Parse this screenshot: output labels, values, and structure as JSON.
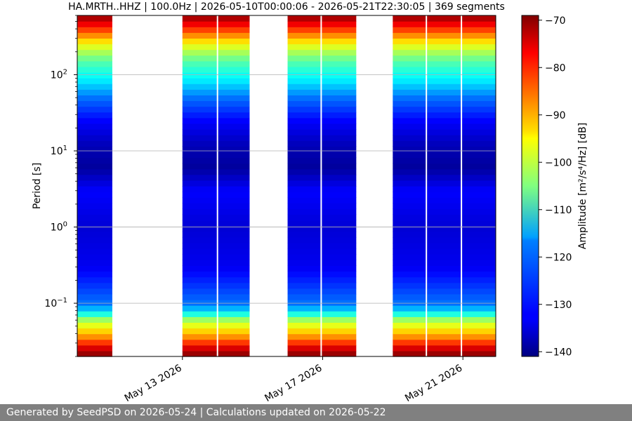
{
  "chart_data": {
    "type": "heatmap",
    "title": "HA.MRTH..HHZ | 100.0Hz | 2026-05-10T00:00:06 - 2026-05-21T22:30:05 | 369 segments",
    "x_axis": {
      "kind": "date",
      "range": [
        "2026-05-10T00:00:06",
        "2026-05-21T22:30:05"
      ],
      "ticks": [
        {
          "value": "2026-05-13",
          "label": "May 13 2026"
        },
        {
          "value": "2026-05-17",
          "label": "May 17 2026"
        },
        {
          "value": "2026-05-21",
          "label": "May 21 2026"
        }
      ]
    },
    "y_axis": {
      "label": "Period [s]",
      "scale": "log",
      "inverted": true,
      "range": [
        0.02,
        600
      ],
      "ticks": [
        {
          "value": 0.1,
          "base": "10",
          "exp": "−1"
        },
        {
          "value": 1,
          "base": "10",
          "exp": "0"
        },
        {
          "value": 10,
          "base": "10",
          "exp": "1"
        },
        {
          "value": 100,
          "base": "10",
          "exp": "2"
        }
      ]
    },
    "grid": "horizontal",
    "colorbar": {
      "label": "Amplitude [m²/s⁴/Hz] [dB]",
      "colormap": "jet",
      "range": [
        -141,
        -69
      ],
      "ticks": [
        -70,
        -80,
        -90,
        -100,
        -110,
        -120,
        -130,
        -140
      ]
    },
    "data_coverage": [
      {
        "start": "2026-05-10T00:00:06",
        "end": "2026-05-11T00:00:00"
      },
      {
        "start": "2026-05-13T00:00:00",
        "end": "2026-05-14T22:00:00"
      },
      {
        "start": "2026-05-16T00:00:00",
        "end": "2026-05-17T23:00:00"
      },
      {
        "start": "2026-05-19T00:00:00",
        "end": "2026-05-21T22:30:05"
      }
    ],
    "data_gaps": [
      "2026-05-14T00:00:00",
      "2026-05-16T23:00:00",
      "2026-05-19T23:00:00",
      "2026-05-20T23:00:00"
    ],
    "psd_profile": [
      {
        "period": 0.02,
        "db": -69
      },
      {
        "period": 0.025,
        "db": -74
      },
      {
        "period": 0.03,
        "db": -81
      },
      {
        "period": 0.035,
        "db": -87
      },
      {
        "period": 0.045,
        "db": -94
      },
      {
        "period": 0.06,
        "db": -102
      },
      {
        "period": 0.08,
        "db": -117
      },
      {
        "period": 0.1,
        "db": -124
      },
      {
        "period": 0.3,
        "db": -133
      },
      {
        "period": 1,
        "db": -135
      },
      {
        "period": 2,
        "db": -133
      },
      {
        "period": 3,
        "db": -132
      },
      {
        "period": 6,
        "db": -139
      },
      {
        "period": 12,
        "db": -137
      },
      {
        "period": 25,
        "db": -132
      },
      {
        "period": 50,
        "db": -124
      },
      {
        "period": 80,
        "db": -116
      },
      {
        "period": 150,
        "db": -108
      },
      {
        "period": 250,
        "db": -97
      },
      {
        "period": 350,
        "db": -86
      },
      {
        "period": 450,
        "db": -78
      },
      {
        "period": 600,
        "db": -70
      }
    ]
  },
  "footer": {
    "text": "Generated by SeedPSD on 2026-05-24 | Calculations updated on 2026-05-22"
  }
}
